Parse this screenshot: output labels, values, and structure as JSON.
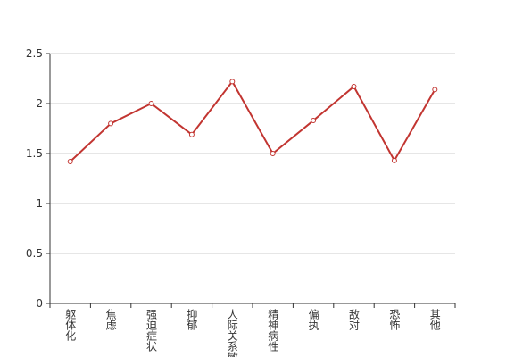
{
  "chart_data": {
    "type": "line",
    "categories": [
      "躯体化",
      "焦虑",
      "强迫症状",
      "抑郁",
      "人际关系敏感",
      "精神病性",
      "偏执",
      "敌对",
      "恐怖",
      "其他"
    ],
    "series": [
      {
        "color": "#c23531",
        "values": [
          1.42,
          1.8,
          2.0,
          1.69,
          2.22,
          1.5,
          1.83,
          2.17,
          1.43,
          2.14
        ]
      }
    ],
    "ylim": [
      0,
      2.5
    ],
    "yticks": [
      0,
      0.5,
      1,
      1.5,
      2,
      2.5
    ],
    "grid": true
  }
}
